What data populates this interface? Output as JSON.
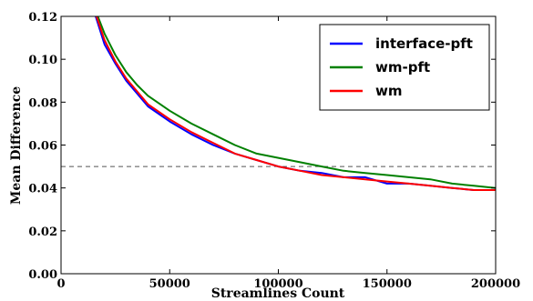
{
  "chart_data": {
    "type": "line",
    "title": "",
    "xlabel": "Streamlines Count",
    "ylabel": "Mean Difference",
    "xlim": [
      0,
      200000
    ],
    "ylim": [
      0,
      0.12
    ],
    "x_ticks": [
      0,
      50000,
      100000,
      150000,
      200000
    ],
    "x_tick_labels": [
      "0",
      "50000",
      "100000",
      "150000",
      "200000"
    ],
    "y_ticks": [
      0,
      0.02,
      0.04,
      0.06,
      0.08,
      0.1,
      0.12
    ],
    "y_tick_labels": [
      "0.00",
      "0.02",
      "0.04",
      "0.06",
      "0.08",
      "0.10",
      "0.12"
    ],
    "grid": false,
    "legend_position": "top-right",
    "reference_line": {
      "y": 0.05,
      "style": "dashed",
      "color": "#555555"
    },
    "x": [
      15000,
      20000,
      25000,
      30000,
      35000,
      40000,
      50000,
      60000,
      70000,
      80000,
      90000,
      100000,
      110000,
      120000,
      130000,
      140000,
      150000,
      160000,
      170000,
      180000,
      190000,
      200000
    ],
    "series": [
      {
        "name": "interface-pft",
        "color": "#0000ff",
        "values": [
          0.123,
          0.107,
          0.098,
          0.09,
          0.084,
          0.078,
          0.071,
          0.065,
          0.06,
          0.056,
          0.053,
          0.05,
          0.048,
          0.047,
          0.045,
          0.045,
          0.042,
          0.042,
          0.041,
          0.04,
          0.039,
          0.039
        ]
      },
      {
        "name": "wm-pft",
        "color": "#008000",
        "values": [
          0.125,
          0.112,
          0.102,
          0.094,
          0.088,
          0.083,
          0.076,
          0.07,
          0.065,
          0.06,
          0.056,
          0.054,
          0.052,
          0.05,
          0.048,
          0.047,
          0.046,
          0.045,
          0.044,
          0.042,
          0.041,
          0.04
        ]
      },
      {
        "name": "wm",
        "color": "#ff0000",
        "values": [
          0.124,
          0.109,
          0.099,
          0.091,
          0.085,
          0.079,
          0.072,
          0.066,
          0.061,
          0.056,
          0.053,
          0.05,
          0.048,
          0.046,
          0.045,
          0.044,
          0.043,
          0.042,
          0.041,
          0.04,
          0.039,
          0.039
        ]
      }
    ]
  }
}
